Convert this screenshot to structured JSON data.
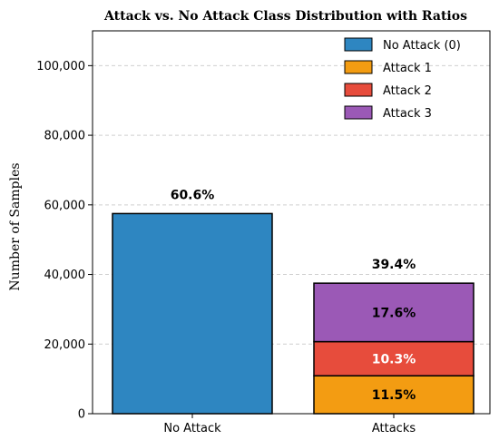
{
  "chart_data": {
    "type": "bar",
    "title": "Attack vs. No Attack Class Distribution with Ratios",
    "xlabel": "",
    "ylabel": "Number of Samples",
    "ylim": [
      0,
      110000
    ],
    "yticks": [
      0,
      20000,
      40000,
      60000,
      80000,
      100000
    ],
    "ytick_labels": [
      "0",
      "20,000",
      "40,000",
      "60,000",
      "80,000",
      "100,000"
    ],
    "grid": true,
    "legend_position": "top-right",
    "categories": [
      "No Attack",
      "Attacks"
    ],
    "series": [
      {
        "name": "No Attack (0)",
        "color": "#2e86c1",
        "values": [
          57500,
          0
        ]
      },
      {
        "name": "Attack 1",
        "color": "#f39c12",
        "values": [
          0,
          10900
        ]
      },
      {
        "name": "Attack 2",
        "color": "#e74c3c",
        "values": [
          0,
          9800
        ]
      },
      {
        "name": "Attack 3",
        "color": "#9b59b6",
        "values": [
          0,
          16800
        ]
      }
    ],
    "total_labels": [
      "60.6%",
      "39.4%"
    ],
    "segment_labels": [
      {
        "category": 1,
        "series": 1,
        "text": "11.5%",
        "color": "#000000"
      },
      {
        "category": 1,
        "series": 2,
        "text": "10.3%",
        "color": "#ffffff"
      },
      {
        "category": 1,
        "series": 3,
        "text": "17.6%",
        "color": "#000000"
      }
    ]
  }
}
